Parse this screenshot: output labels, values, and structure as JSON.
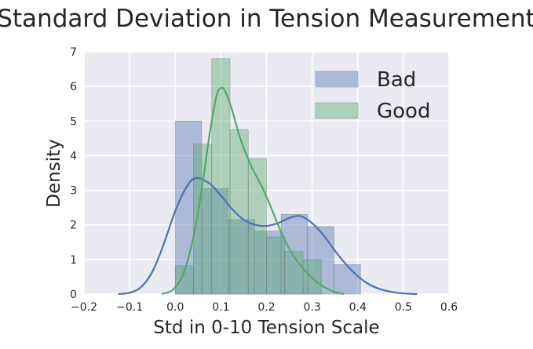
{
  "chart_data": {
    "type": "histogram",
    "title": "Standard Deviation in Tension Measurement",
    "xlabel": "Std in 0-10 Tension Scale",
    "ylabel": "Density",
    "xlim": [
      -0.2,
      0.6
    ],
    "ylim": [
      0,
      7
    ],
    "x_ticks": [
      -0.2,
      -0.1,
      0.0,
      0.1,
      0.2,
      0.3,
      0.4,
      0.5,
      0.6
    ],
    "x_tick_labels": [
      "−0.2",
      "−0.1",
      "0.0",
      "0.1",
      "0.2",
      "0.3",
      "0.4",
      "0.5",
      "0.6"
    ],
    "y_ticks": [
      0,
      1,
      2,
      3,
      4,
      5,
      6,
      7
    ],
    "y_tick_labels": [
      "0",
      "1",
      "2",
      "3",
      "4",
      "5",
      "6",
      "7"
    ],
    "grid": true,
    "legend_position": "top-right",
    "series": [
      {
        "name": "Bad",
        "color": "#4c72b0",
        "bins": [
          {
            "x0": 0.0,
            "x1": 0.058,
            "value": 5.0
          },
          {
            "x0": 0.058,
            "x1": 0.116,
            "value": 3.05
          },
          {
            "x0": 0.116,
            "x1": 0.174,
            "value": 2.15
          },
          {
            "x0": 0.174,
            "x1": 0.232,
            "value": 1.82
          },
          {
            "x0": 0.232,
            "x1": 0.29,
            "value": 2.3
          },
          {
            "x0": 0.29,
            "x1": 0.348,
            "value": 1.95
          },
          {
            "x0": 0.348,
            "x1": 0.406,
            "value": 0.85
          }
        ],
        "kde": [
          [
            -0.125,
            0.0
          ],
          [
            -0.1,
            0.04
          ],
          [
            -0.075,
            0.2
          ],
          [
            -0.05,
            0.65
          ],
          [
            -0.025,
            1.45
          ],
          [
            0.0,
            2.4
          ],
          [
            0.025,
            3.1
          ],
          [
            0.045,
            3.35
          ],
          [
            0.075,
            3.2
          ],
          [
            0.1,
            2.85
          ],
          [
            0.125,
            2.45
          ],
          [
            0.15,
            2.15
          ],
          [
            0.175,
            2.0
          ],
          [
            0.2,
            1.97
          ],
          [
            0.225,
            2.05
          ],
          [
            0.25,
            2.2
          ],
          [
            0.275,
            2.25
          ],
          [
            0.3,
            2.05
          ],
          [
            0.325,
            1.7
          ],
          [
            0.35,
            1.25
          ],
          [
            0.375,
            0.85
          ],
          [
            0.4,
            0.52
          ],
          [
            0.425,
            0.28
          ],
          [
            0.45,
            0.14
          ],
          [
            0.475,
            0.06
          ],
          [
            0.5,
            0.02
          ],
          [
            0.53,
            0.0
          ]
        ]
      },
      {
        "name": "Good",
        "color": "#55a868",
        "bins": [
          {
            "x0": 0.0,
            "x1": 0.04,
            "value": 0.82
          },
          {
            "x0": 0.04,
            "x1": 0.08,
            "value": 4.33
          },
          {
            "x0": 0.08,
            "x1": 0.12,
            "value": 6.8
          },
          {
            "x0": 0.12,
            "x1": 0.16,
            "value": 4.75
          },
          {
            "x0": 0.16,
            "x1": 0.2,
            "value": 3.92
          },
          {
            "x0": 0.2,
            "x1": 0.24,
            "value": 1.65
          },
          {
            "x0": 0.24,
            "x1": 0.28,
            "value": 1.23
          },
          {
            "x0": 0.28,
            "x1": 0.32,
            "value": 1.0
          }
        ],
        "kde": [
          [
            -0.03,
            0.0
          ],
          [
            -0.01,
            0.08
          ],
          [
            0.0,
            0.2
          ],
          [
            0.015,
            0.5
          ],
          [
            0.03,
            1.1
          ],
          [
            0.045,
            2.0
          ],
          [
            0.06,
            3.2
          ],
          [
            0.075,
            4.6
          ],
          [
            0.09,
            5.7
          ],
          [
            0.1,
            5.95
          ],
          [
            0.11,
            5.85
          ],
          [
            0.125,
            5.3
          ],
          [
            0.14,
            4.6
          ],
          [
            0.155,
            4.05
          ],
          [
            0.17,
            3.6
          ],
          [
            0.19,
            3.1
          ],
          [
            0.21,
            2.5
          ],
          [
            0.23,
            1.85
          ],
          [
            0.25,
            1.3
          ],
          [
            0.27,
            0.9
          ],
          [
            0.29,
            0.6
          ],
          [
            0.31,
            0.35
          ],
          [
            0.33,
            0.18
          ],
          [
            0.35,
            0.06
          ],
          [
            0.37,
            0.0
          ]
        ]
      }
    ]
  }
}
